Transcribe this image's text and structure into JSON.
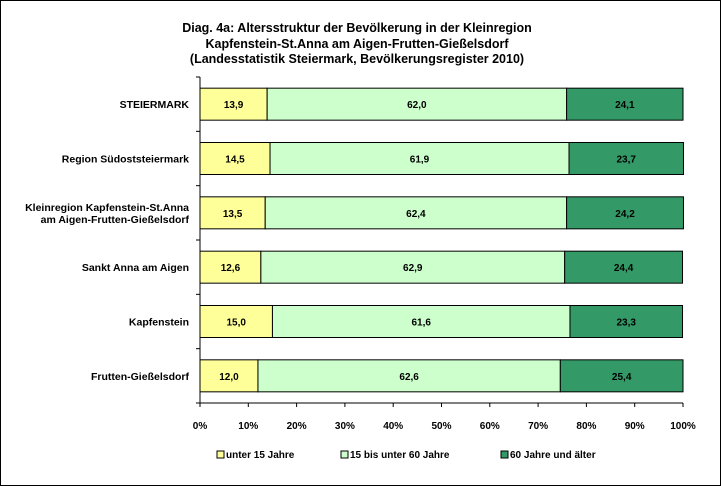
{
  "chart_data": {
    "type": "bar",
    "orientation": "horizontal",
    "stacked": "percent",
    "title": [
      "Diag. 4a: Altersstruktur  der Bevölkerung  in der Kleinregion",
      "Kapfenstein-St.Anna  am Aigen-Frutten-Gießelsdorf",
      "(Landesstatistik  Steiermark,  Bevölkerungsregister  2010)"
    ],
    "categories": [
      [
        "STEIERMARK"
      ],
      [
        "Region Südoststeiermark"
      ],
      [
        "Kleinregion Kapfenstein-St.Anna",
        "am Aigen-Frutten-Gießelsdorf"
      ],
      [
        "Sankt Anna am Aigen"
      ],
      [
        "Kapfenstein"
      ],
      [
        "Frutten-Gießelsdorf"
      ]
    ],
    "series": [
      {
        "name": "unter 15 Jahre",
        "color": "#ffff99",
        "values": [
          13.9,
          14.5,
          13.5,
          12.6,
          15.0,
          12.0
        ],
        "labels": [
          "13,9",
          "14,5",
          "13,5",
          "12,6",
          "15,0",
          "12,0"
        ]
      },
      {
        "name": "15 bis unter 60 Jahre",
        "color": "#ccffcc",
        "values": [
          62.0,
          61.9,
          62.4,
          62.9,
          61.6,
          62.6
        ],
        "labels": [
          "62,0",
          "61,9",
          "62,4",
          "62,9",
          "61,6",
          "62,6"
        ]
      },
      {
        "name": "60 Jahre und älter",
        "color": "#339966",
        "values": [
          24.1,
          23.7,
          24.2,
          24.4,
          23.3,
          25.4
        ],
        "labels": [
          "24,1",
          "23,7",
          "24,2",
          "24,4",
          "23,3",
          "25,4"
        ]
      }
    ],
    "x_ticks": [
      "0%",
      "10%",
      "20%",
      "30%",
      "40%",
      "50%",
      "60%",
      "70%",
      "80%",
      "90%",
      "100%"
    ],
    "xlim": [
      0,
      100
    ],
    "grid": false,
    "legend_position": "bottom"
  }
}
